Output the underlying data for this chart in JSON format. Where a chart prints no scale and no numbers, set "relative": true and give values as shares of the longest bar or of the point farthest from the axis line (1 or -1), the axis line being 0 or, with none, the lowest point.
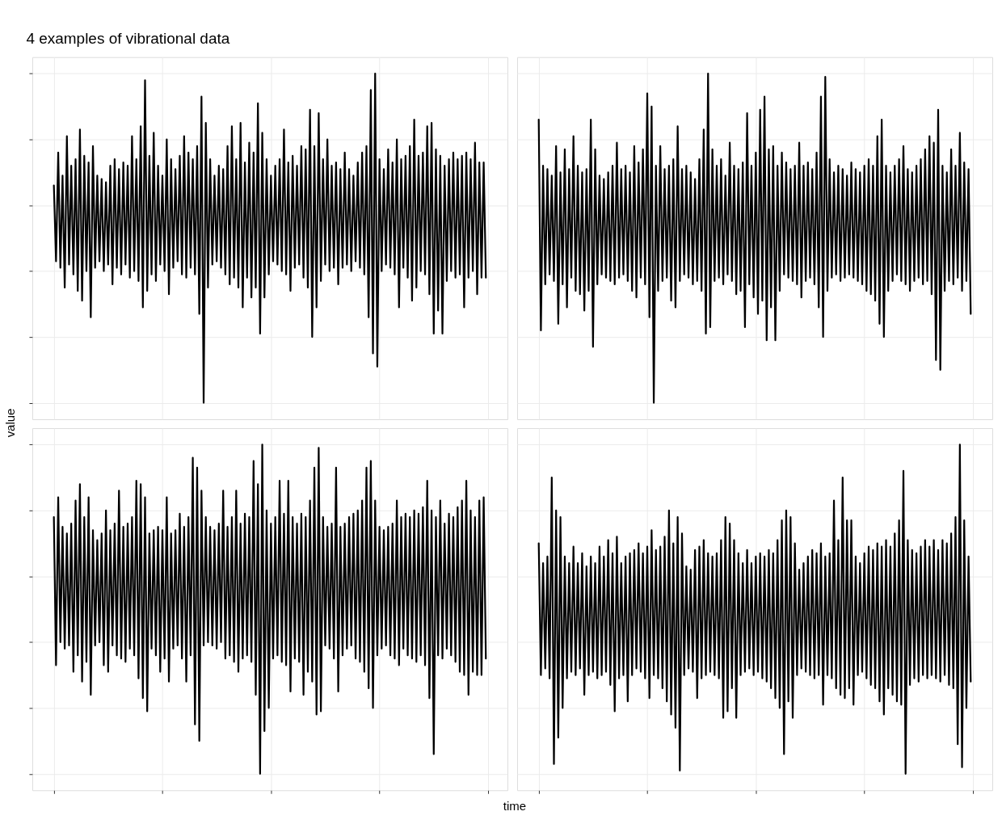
{
  "chart_data": [
    {
      "type": "line",
      "title": "4 examples of vibrational data",
      "ylabel": "value",
      "relative": true,
      "grid": true,
      "tick_labels": false,
      "categories": [
        null,
        null,
        null,
        null,
        null,
        null,
        null,
        null,
        null,
        null,
        null,
        null,
        null,
        null,
        null,
        null,
        null,
        null,
        null,
        null,
        null,
        null,
        null,
        null,
        null,
        null,
        null,
        null,
        null,
        null,
        null,
        null,
        null,
        null,
        null,
        null,
        null,
        null,
        null,
        null,
        null,
        null,
        null,
        null,
        null,
        null,
        null,
        null,
        null,
        null,
        null,
        null,
        null,
        null,
        null,
        null,
        null,
        null,
        null,
        null,
        null,
        null,
        null,
        null,
        null,
        null,
        null,
        null,
        null,
        null,
        null,
        null,
        null,
        null,
        null,
        null,
        null,
        null,
        null,
        null,
        null,
        null,
        null,
        null,
        null,
        null,
        null,
        null,
        null,
        null,
        null,
        null,
        null,
        null,
        null,
        null,
        null,
        null,
        null,
        null,
        null,
        null,
        null,
        null,
        null,
        null,
        null,
        null,
        null,
        null,
        null,
        null,
        null,
        null,
        null,
        null,
        null,
        null,
        null,
        null,
        null,
        null,
        null,
        null,
        null,
        null,
        null,
        null,
        null,
        null,
        null,
        null,
        null,
        null,
        null,
        null,
        null,
        null,
        null,
        null,
        null,
        null,
        null,
        null,
        null,
        null,
        null,
        null,
        null,
        null,
        null,
        null,
        null,
        null,
        null,
        null,
        null,
        null,
        null,
        null,
        null,
        null,
        null,
        null,
        null,
        null,
        null,
        null,
        null,
        null,
        null,
        null,
        null,
        null,
        null,
        null,
        null,
        null,
        null,
        null,
        null,
        null,
        null,
        null,
        null,
        null,
        null,
        null,
        null,
        null,
        null,
        null,
        null,
        null,
        null,
        null,
        null,
        null,
        null,
        null
      ],
      "series": [
        {
          "color": "#000000",
          "values": [
            0.66,
            0.43,
            0.76,
            0.41,
            0.69,
            0.35,
            0.81,
            0.42,
            0.72,
            0.39,
            0.74,
            0.34,
            0.83,
            0.31,
            0.75,
            0.4,
            0.73,
            0.26,
            0.78,
            0.41,
            0.69,
            0.43,
            0.68,
            0.4,
            0.67,
            0.42,
            0.72,
            0.36,
            0.74,
            0.41,
            0.71,
            0.39,
            0.73,
            0.42,
            0.72,
            0.38,
            0.81,
            0.4,
            0.74,
            0.37,
            0.84,
            0.29,
            0.98,
            0.34,
            0.75,
            0.39,
            0.82,
            0.37,
            0.72,
            0.42,
            0.69,
            0.4,
            0.8,
            0.33,
            0.74,
            0.41,
            0.71,
            0.43,
            0.75,
            0.39,
            0.81,
            0.38,
            0.76,
            0.41,
            0.74,
            0.39,
            0.78,
            0.27,
            0.93,
            0,
            0.85,
            0.35,
            0.74,
            0.42,
            0.69,
            0.43,
            0.72,
            0.41,
            0.71,
            0.39,
            0.78,
            0.36,
            0.84,
            0.38,
            0.74,
            0.35,
            0.85,
            0.29,
            0.73,
            0.38,
            0.79,
            0.32,
            0.76,
            0.35,
            0.91,
            0.21,
            0.82,
            0.32,
            0.74,
            0.39,
            0.69,
            0.43,
            0.72,
            0.42,
            0.74,
            0.4,
            0.83,
            0.39,
            0.73,
            0.34,
            0.75,
            0.41,
            0.72,
            0.42,
            0.78,
            0.38,
            0.77,
            0.35,
            0.89,
            0.2,
            0.78,
            0.29,
            0.88,
            0.37,
            0.74,
            0.42,
            0.8,
            0.4,
            0.72,
            0.41,
            0.73,
            0.36,
            0.71,
            0.41,
            0.76,
            0.42,
            0.71,
            0.4,
            0.69,
            0.43,
            0.73,
            0.41,
            0.76,
            0.39,
            0.78,
            0.26,
            0.95,
            0.15,
            1,
            0.11,
            0.74,
            0.4,
            0.71,
            0.42,
            0.77,
            0.41,
            0.73,
            0.39,
            0.8,
            0.29,
            0.74,
            0.41,
            0.75,
            0.38,
            0.78,
            0.31,
            0.86,
            0.35,
            0.75,
            0.4,
            0.76,
            0.39,
            0.84,
            0.33,
            0.85,
            0.21,
            0.77,
            0.28,
            0.75,
            0.21,
            0.72,
            0.37,
            0.74,
            0.4,
            0.76,
            0.38,
            0.74,
            0.39,
            0.75,
            0.29,
            0.76,
            0.38,
            0.74,
            0.4,
            0.79,
            0.33,
            0.73,
            0.38,
            0.73,
            0.38
          ]
        }
      ]
    },
    {
      "type": "line",
      "relative": true,
      "grid": true,
      "tick_labels": false,
      "categories": [
        null,
        null,
        null,
        null,
        null,
        null,
        null,
        null,
        null,
        null,
        null,
        null,
        null,
        null,
        null,
        null,
        null,
        null,
        null,
        null,
        null,
        null,
        null,
        null,
        null,
        null,
        null,
        null,
        null,
        null,
        null,
        null,
        null,
        null,
        null,
        null,
        null,
        null,
        null,
        null,
        null,
        null,
        null,
        null,
        null,
        null,
        null,
        null,
        null,
        null,
        null,
        null,
        null,
        null,
        null,
        null,
        null,
        null,
        null,
        null,
        null,
        null,
        null,
        null,
        null,
        null,
        null,
        null,
        null,
        null,
        null,
        null,
        null,
        null,
        null,
        null,
        null,
        null,
        null,
        null,
        null,
        null,
        null,
        null,
        null,
        null,
        null,
        null,
        null,
        null,
        null,
        null,
        null,
        null,
        null,
        null,
        null,
        null,
        null,
        null,
        null,
        null,
        null,
        null,
        null,
        null,
        null,
        null,
        null,
        null,
        null,
        null,
        null,
        null,
        null,
        null,
        null,
        null,
        null,
        null,
        null,
        null,
        null,
        null,
        null,
        null,
        null,
        null,
        null,
        null,
        null,
        null,
        null,
        null,
        null,
        null,
        null,
        null,
        null,
        null,
        null,
        null,
        null,
        null,
        null,
        null,
        null,
        null,
        null,
        null,
        null,
        null,
        null,
        null,
        null,
        null,
        null,
        null,
        null,
        null,
        null,
        null,
        null,
        null,
        null,
        null,
        null,
        null,
        null,
        null,
        null,
        null,
        null,
        null,
        null,
        null,
        null,
        null,
        null,
        null,
        null,
        null,
        null,
        null,
        null,
        null,
        null,
        null,
        null,
        null,
        null,
        null,
        null,
        null,
        null,
        null,
        null,
        null,
        null,
        null
      ],
      "series": [
        {
          "color": "#000000",
          "values": [
            0.86,
            0.22,
            0.72,
            0.36,
            0.71,
            0.39,
            0.69,
            0.37,
            0.78,
            0.24,
            0.7,
            0.36,
            0.77,
            0.29,
            0.71,
            0.38,
            0.81,
            0.34,
            0.72,
            0.33,
            0.7,
            0.28,
            0.71,
            0.34,
            0.86,
            0.17,
            0.77,
            0.36,
            0.69,
            0.39,
            0.68,
            0.38,
            0.7,
            0.37,
            0.72,
            0.36,
            0.79,
            0.38,
            0.71,
            0.39,
            0.72,
            0.37,
            0.7,
            0.34,
            0.78,
            0.32,
            0.73,
            0.38,
            0.77,
            0.36,
            0.94,
            0.26,
            0.9,
            0,
            0.72,
            0.34,
            0.78,
            0.37,
            0.71,
            0.38,
            0.72,
            0.31,
            0.74,
            0.29,
            0.84,
            0.37,
            0.71,
            0.39,
            0.72,
            0.38,
            0.7,
            0.36,
            0.68,
            0.37,
            0.74,
            0.34,
            0.83,
            0.21,
            1,
            0.23,
            0.77,
            0.37,
            0.72,
            0.38,
            0.74,
            0.36,
            0.69,
            0.39,
            0.79,
            0.37,
            0.72,
            0.33,
            0.71,
            0.34,
            0.73,
            0.23,
            0.88,
            0.36,
            0.72,
            0.32,
            0.76,
            0.27,
            0.89,
            0.31,
            0.93,
            0.19,
            0.77,
            0.29,
            0.78,
            0.19,
            0.72,
            0.34,
            0.76,
            0.39,
            0.73,
            0.38,
            0.71,
            0.37,
            0.72,
            0.36,
            0.79,
            0.32,
            0.72,
            0.37,
            0.73,
            0.38,
            0.71,
            0.36,
            0.76,
            0.29,
            0.93,
            0.2,
            0.99,
            0.34,
            0.74,
            0.38,
            0.7,
            0.39,
            0.72,
            0.37,
            0.71,
            0.38,
            0.69,
            0.39,
            0.73,
            0.38,
            0.71,
            0.37,
            0.7,
            0.36,
            0.72,
            0.34,
            0.74,
            0.33,
            0.72,
            0.31,
            0.81,
            0.24,
            0.86,
            0.2,
            0.72,
            0.34,
            0.7,
            0.37,
            0.72,
            0.39,
            0.74,
            0.37,
            0.78,
            0.36,
            0.71,
            0.34,
            0.7,
            0.37,
            0.72,
            0.38,
            0.74,
            0.36,
            0.77,
            0.37,
            0.81,
            0.33,
            0.79,
            0.13,
            0.89,
            0.1,
            0.72,
            0.34,
            0.7,
            0.37,
            0.77,
            0.36,
            0.72,
            0.38,
            0.82,
            0.34,
            0.73,
            0.37,
            0.71,
            0.27
          ]
        }
      ]
    },
    {
      "type": "line",
      "xlabel": "time",
      "relative": true,
      "grid": true,
      "tick_labels": false,
      "categories": [
        null,
        null,
        null,
        null,
        null,
        null,
        null,
        null,
        null,
        null,
        null,
        null,
        null,
        null,
        null,
        null,
        null,
        null,
        null,
        null,
        null,
        null,
        null,
        null,
        null,
        null,
        null,
        null,
        null,
        null,
        null,
        null,
        null,
        null,
        null,
        null,
        null,
        null,
        null,
        null,
        null,
        null,
        null,
        null,
        null,
        null,
        null,
        null,
        null,
        null,
        null,
        null,
        null,
        null,
        null,
        null,
        null,
        null,
        null,
        null,
        null,
        null,
        null,
        null,
        null,
        null,
        null,
        null,
        null,
        null,
        null,
        null,
        null,
        null,
        null,
        null,
        null,
        null,
        null,
        null,
        null,
        null,
        null,
        null,
        null,
        null,
        null,
        null,
        null,
        null,
        null,
        null,
        null,
        null,
        null,
        null,
        null,
        null,
        null,
        null,
        null,
        null,
        null,
        null,
        null,
        null,
        null,
        null,
        null,
        null,
        null,
        null,
        null,
        null,
        null,
        null,
        null,
        null,
        null,
        null,
        null,
        null,
        null,
        null,
        null,
        null,
        null,
        null,
        null,
        null,
        null,
        null,
        null,
        null,
        null,
        null,
        null,
        null,
        null,
        null,
        null,
        null,
        null,
        null,
        null,
        null,
        null,
        null,
        null,
        null,
        null,
        null,
        null,
        null,
        null,
        null,
        null,
        null,
        null,
        null,
        null,
        null,
        null,
        null,
        null,
        null,
        null,
        null,
        null,
        null,
        null,
        null,
        null,
        null,
        null,
        null,
        null,
        null,
        null,
        null,
        null,
        null,
        null,
        null,
        null,
        null,
        null,
        null,
        null,
        null,
        null,
        null,
        null,
        null,
        null,
        null,
        null,
        null,
        null,
        null
      ],
      "series": [
        {
          "color": "#000000",
          "values": [
            0.78,
            0.33,
            0.84,
            0.4,
            0.75,
            0.38,
            0.73,
            0.39,
            0.76,
            0.31,
            0.83,
            0.36,
            0.88,
            0.28,
            0.78,
            0.34,
            0.84,
            0.24,
            0.74,
            0.39,
            0.71,
            0.4,
            0.73,
            0.33,
            0.8,
            0.31,
            0.74,
            0.39,
            0.76,
            0.36,
            0.86,
            0.35,
            0.75,
            0.34,
            0.76,
            0.38,
            0.78,
            0.36,
            0.89,
            0.29,
            0.88,
            0.23,
            0.84,
            0.19,
            0.73,
            0.38,
            0.74,
            0.36,
            0.75,
            0.31,
            0.74,
            0.35,
            0.84,
            0.28,
            0.73,
            0.38,
            0.74,
            0.39,
            0.79,
            0.35,
            0.75,
            0.28,
            0.78,
            0.36,
            0.96,
            0.15,
            0.93,
            0.1,
            0.86,
            0.39,
            0.78,
            0.4,
            0.75,
            0.39,
            0.74,
            0.38,
            0.76,
            0.4,
            0.86,
            0.35,
            0.75,
            0.36,
            0.78,
            0.34,
            0.86,
            0.31,
            0.76,
            0.35,
            0.79,
            0.36,
            0.78,
            0.34,
            0.95,
            0.24,
            0.88,
            0,
            1,
            0.13,
            0.8,
            0.2,
            0.76,
            0.35,
            0.78,
            0.36,
            0.89,
            0.34,
            0.79,
            0.33,
            0.89,
            0.25,
            0.78,
            0.35,
            0.76,
            0.34,
            0.79,
            0.24,
            0.78,
            0.31,
            0.83,
            0.28,
            0.93,
            0.18,
            0.99,
            0.19,
            0.78,
            0.39,
            0.75,
            0.38,
            0.76,
            0.35,
            0.93,
            0.25,
            0.75,
            0.36,
            0.76,
            0.38,
            0.78,
            0.39,
            0.79,
            0.35,
            0.8,
            0.34,
            0.83,
            0.31,
            0.93,
            0.26,
            0.95,
            0.2,
            0.83,
            0.36,
            0.75,
            0.38,
            0.74,
            0.39,
            0.75,
            0.36,
            0.76,
            0.35,
            0.83,
            0.33,
            0.78,
            0.38,
            0.79,
            0.36,
            0.78,
            0.35,
            0.8,
            0.34,
            0.79,
            0.36,
            0.81,
            0.33,
            0.89,
            0.23,
            0.8,
            0.06,
            0.78,
            0.36,
            0.83,
            0.35,
            0.76,
            0.38,
            0.79,
            0.36,
            0.78,
            0.34,
            0.81,
            0.31,
            0.83,
            0.3,
            0.89,
            0.24,
            0.8,
            0.31,
            0.78,
            0.3,
            0.83,
            0.3,
            0.84,
            0.35
          ]
        }
      ]
    },
    {
      "type": "line",
      "relative": true,
      "grid": true,
      "tick_labels": false,
      "categories": [
        null,
        null,
        null,
        null,
        null,
        null,
        null,
        null,
        null,
        null,
        null,
        null,
        null,
        null,
        null,
        null,
        null,
        null,
        null,
        null,
        null,
        null,
        null,
        null,
        null,
        null,
        null,
        null,
        null,
        null,
        null,
        null,
        null,
        null,
        null,
        null,
        null,
        null,
        null,
        null,
        null,
        null,
        null,
        null,
        null,
        null,
        null,
        null,
        null,
        null,
        null,
        null,
        null,
        null,
        null,
        null,
        null,
        null,
        null,
        null,
        null,
        null,
        null,
        null,
        null,
        null,
        null,
        null,
        null,
        null,
        null,
        null,
        null,
        null,
        null,
        null,
        null,
        null,
        null,
        null,
        null,
        null,
        null,
        null,
        null,
        null,
        null,
        null,
        null,
        null,
        null,
        null,
        null,
        null,
        null,
        null,
        null,
        null,
        null,
        null,
        null,
        null,
        null,
        null,
        null,
        null,
        null,
        null,
        null,
        null,
        null,
        null,
        null,
        null,
        null,
        null,
        null,
        null,
        null,
        null,
        null,
        null,
        null,
        null,
        null,
        null,
        null,
        null,
        null,
        null,
        null,
        null,
        null,
        null,
        null,
        null,
        null,
        null,
        null,
        null,
        null,
        null,
        null,
        null,
        null,
        null,
        null,
        null,
        null,
        null,
        null,
        null,
        null,
        null,
        null,
        null,
        null,
        null,
        null,
        null,
        null,
        null,
        null,
        null,
        null,
        null,
        null,
        null,
        null,
        null,
        null,
        null,
        null,
        null,
        null,
        null,
        null,
        null,
        null,
        null,
        null,
        null,
        null,
        null,
        null,
        null,
        null,
        null,
        null,
        null,
        null,
        null,
        null,
        null,
        null,
        null,
        null,
        null,
        null,
        null
      ],
      "series": [
        {
          "color": "#000000",
          "values": [
            0.7,
            0.3,
            0.64,
            0.32,
            0.66,
            0.29,
            0.9,
            0.03,
            0.8,
            0.11,
            0.78,
            0.2,
            0.66,
            0.29,
            0.64,
            0.31,
            0.69,
            0.3,
            0.64,
            0.32,
            0.67,
            0.24,
            0.63,
            0.3,
            0.66,
            0.31,
            0.64,
            0.29,
            0.69,
            0.3,
            0.66,
            0.31,
            0.71,
            0.27,
            0.67,
            0.19,
            0.72,
            0.29,
            0.64,
            0.3,
            0.66,
            0.22,
            0.67,
            0.3,
            0.68,
            0.32,
            0.7,
            0.31,
            0.67,
            0.29,
            0.69,
            0.23,
            0.74,
            0.3,
            0.68,
            0.29,
            0.69,
            0.26,
            0.72,
            0.22,
            0.8,
            0.18,
            0.7,
            0.14,
            0.78,
            0.01,
            0.73,
            0.3,
            0.63,
            0.32,
            0.62,
            0.31,
            0.68,
            0.23,
            0.69,
            0.29,
            0.71,
            0.3,
            0.67,
            0.31,
            0.66,
            0.3,
            0.67,
            0.29,
            0.71,
            0.17,
            0.78,
            0.19,
            0.76,
            0.26,
            0.71,
            0.17,
            0.67,
            0.3,
            0.64,
            0.31,
            0.68,
            0.32,
            0.64,
            0.3,
            0.66,
            0.31,
            0.67,
            0.29,
            0.66,
            0.28,
            0.68,
            0.26,
            0.67,
            0.23,
            0.71,
            0.2,
            0.77,
            0.06,
            0.8,
            0.22,
            0.78,
            0.17,
            0.7,
            0.3,
            0.62,
            0.32,
            0.64,
            0.31,
            0.66,
            0.3,
            0.68,
            0.29,
            0.67,
            0.3,
            0.7,
            0.21,
            0.66,
            0.3,
            0.67,
            0.29,
            0.83,
            0.26,
            0.71,
            0.24,
            0.9,
            0.23,
            0.77,
            0.26,
            0.77,
            0.21,
            0.66,
            0.3,
            0.64,
            0.31,
            0.67,
            0.29,
            0.69,
            0.27,
            0.68,
            0.26,
            0.7,
            0.22,
            0.69,
            0.18,
            0.71,
            0.26,
            0.69,
            0.24,
            0.73,
            0.22,
            0.77,
            0.21,
            0.92,
            0,
            0.71,
            0.27,
            0.68,
            0.29,
            0.67,
            0.28,
            0.69,
            0.3,
            0.71,
            0.29,
            0.69,
            0.3,
            0.71,
            0.29,
            0.68,
            0.28,
            0.71,
            0.3,
            0.7,
            0.27,
            0.73,
            0.26,
            0.78,
            0.09,
            1,
            0.02,
            0.77,
            0.2,
            0.66,
            0.28
          ]
        }
      ]
    }
  ]
}
